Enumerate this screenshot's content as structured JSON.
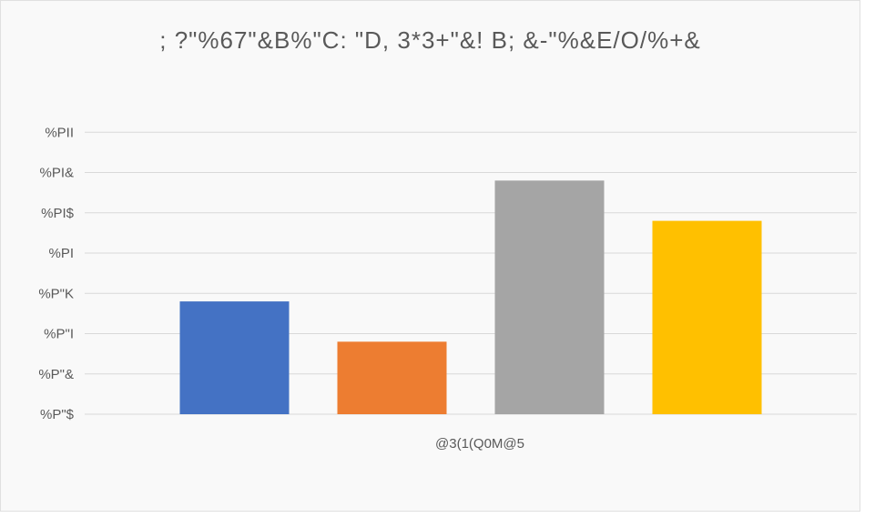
{
  "chart_data": {
    "type": "bar",
    "title": "; ?\"%67\"&B%\"C: \"D, 3*3+\"&! B; &-\"%&E/O/%+&",
    "categories": [
      "@3(1(Q0M@5"
    ],
    "series": [
      {
        "values": [
          0.94
        ],
        "color": "#4472c4"
      },
      {
        "values": [
          0.89
        ],
        "color": "#ed7d31"
      },
      {
        "values": [
          1.09
        ],
        "color": "#a5a5a5"
      },
      {
        "values": [
          1.04
        ],
        "color": "#ffc000"
      }
    ],
    "ylim": [
      0.8,
      1.2
    ],
    "yticks": [
      0.8,
      0.85,
      0.9,
      0.95,
      1.0,
      1.05,
      1.1,
      1.15
    ],
    "ytick_labels": [
      "%P\"$",
      "%P\"&",
      "%P\"I",
      "%P\"K",
      "%PI",
      "%PI$",
      "%PI&",
      "%PII"
    ],
    "grid": true,
    "gridline_color": "#d9d9d9"
  }
}
